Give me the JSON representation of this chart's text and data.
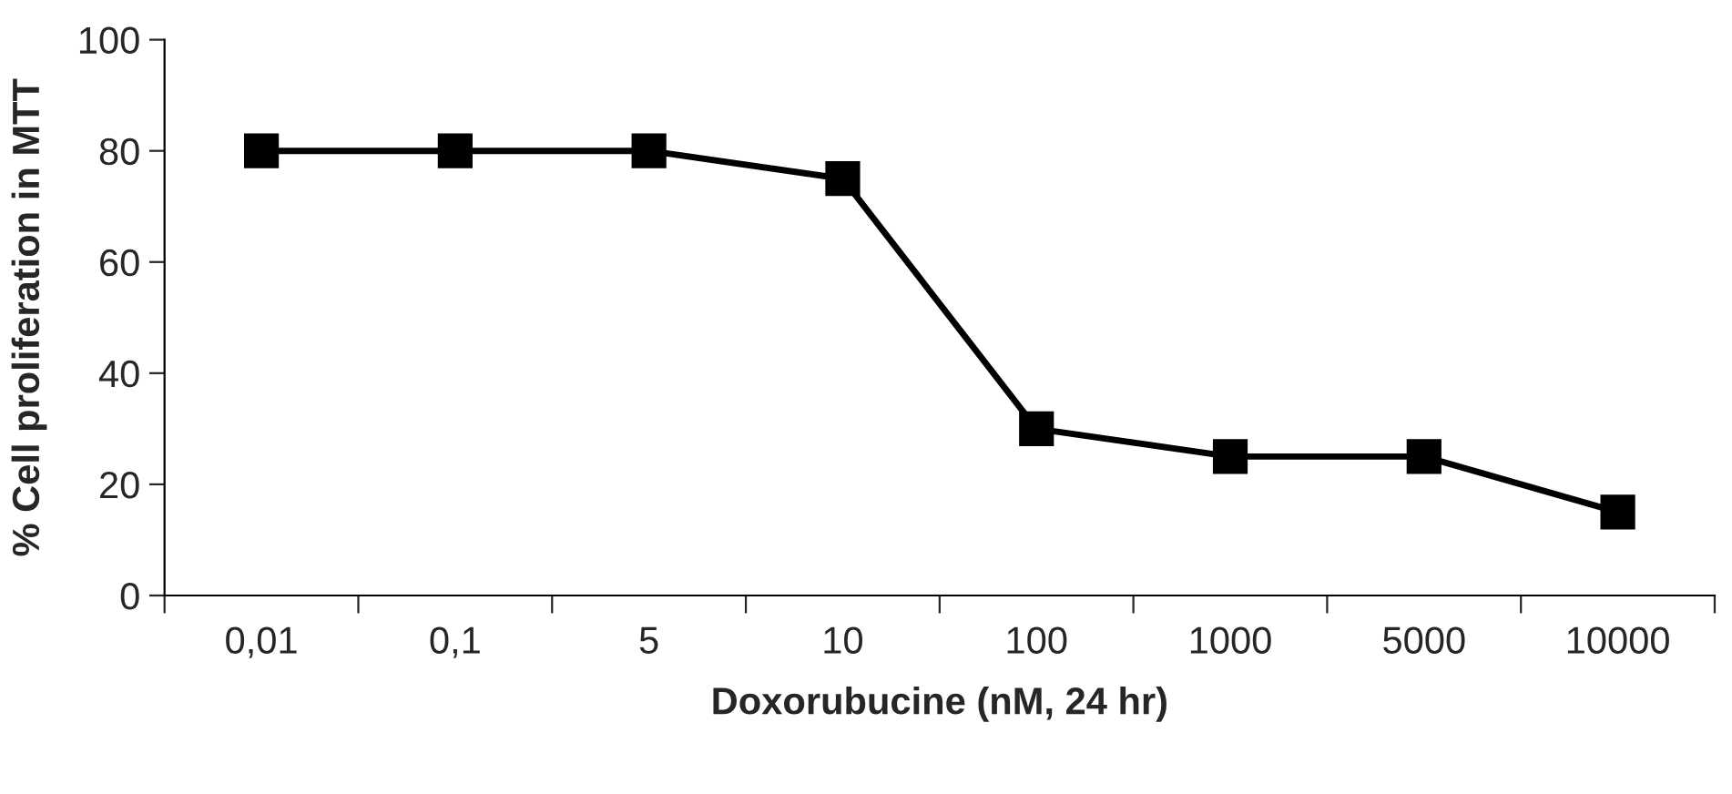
{
  "chart_data": {
    "type": "line",
    "xlabel": "Doxorubucine (nM, 24 hr)",
    "ylabel": "% Cell proliferation in MTT",
    "categories": [
      "0,01",
      "0,1",
      "5",
      "10",
      "100",
      "1000",
      "5000",
      "10000"
    ],
    "series": [
      {
        "color": "#000000",
        "values": [
          80,
          80,
          80,
          75,
          30,
          25,
          25,
          15
        ]
      }
    ],
    "ylim": [
      0,
      100
    ],
    "yticks": [
      0,
      20,
      40,
      60,
      80,
      100
    ],
    "grid": false,
    "marker": "square",
    "line_style": "solid"
  }
}
